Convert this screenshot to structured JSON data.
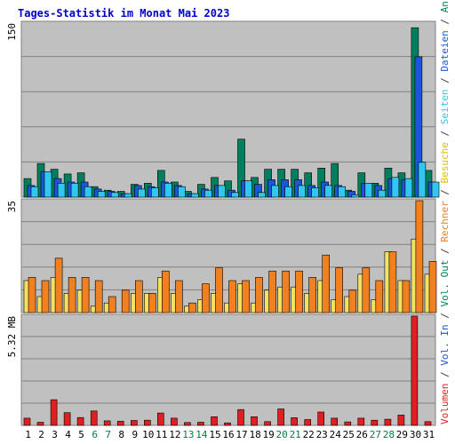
{
  "chart_data": {
    "type": "bar",
    "title": "Tages-Statistik im Monat Mai 2023",
    "categories": [
      "1",
      "2",
      "3",
      "4",
      "5",
      "6",
      "7",
      "8",
      "9",
      "10",
      "11",
      "12",
      "13",
      "14",
      "15",
      "16",
      "17",
      "18",
      "19",
      "20",
      "21",
      "22",
      "23",
      "24",
      "25",
      "26",
      "27",
      "28",
      "29",
      "30",
      "31"
    ],
    "weekend_days": [
      "6",
      "7",
      "13",
      "14",
      "20",
      "21",
      "27",
      "28"
    ],
    "panels": [
      {
        "id": "top",
        "scale_label": "150",
        "ylim": [
          0,
          150
        ],
        "series": [
          {
            "name": "Anfragen",
            "color": "#007f5f",
            "values": [
              16,
              29,
              24,
              20,
              21,
              9,
              6,
              5,
              11,
              12,
              23,
              13,
              5,
              11,
              17,
              14,
              50,
              17,
              24,
              24,
              24,
              21,
              25,
              29,
              6,
              21,
              12,
              25,
              21,
              146,
              23
            ]
          },
          {
            "name": "Dateien",
            "color": "#1a57d8",
            "values": [
              10,
              22,
              16,
              13,
              13,
              7,
              5,
              3,
              10,
              9,
              13,
              10,
              3,
              7,
              10,
              6,
              14,
              11,
              15,
              15,
              15,
              10,
              13,
              10,
              5,
              12,
              10,
              16,
              15,
              121,
              13
            ]
          },
          {
            "name": "Seiten",
            "color": "#30c8f0",
            "values": [
              9,
              22,
              12,
              12,
              9,
              5,
              4,
              3,
              7,
              8,
              12,
              9,
              3,
              6,
              10,
              4,
              14,
              4,
              10,
              9,
              10,
              8,
              10,
              9,
              2,
              12,
              6,
              17,
              16,
              30,
              13
            ]
          }
        ]
      },
      {
        "id": "middle",
        "scale_label": "35",
        "ylim": [
          0,
          35
        ],
        "series": [
          {
            "name": "Besuche",
            "color": "#f5e060",
            "values": [
              10,
              5,
              11,
              6,
              7,
              2,
              3,
              0,
              6,
              6,
              11,
              6,
              2,
              4,
              6,
              3,
              9,
              3,
              7,
              8,
              8,
              6,
              10,
              4,
              5,
              12,
              4,
              19,
              10,
              23,
              12
            ]
          },
          {
            "name": "Rechner",
            "color": "#f08020",
            "values": [
              11,
              10,
              17,
              11,
              11,
              10,
              5,
              7,
              10,
              6,
              13,
              10,
              3,
              9,
              14,
              10,
              10,
              11,
              13,
              13,
              13,
              11,
              18,
              14,
              7,
              14,
              10,
              19,
              10,
              35,
              16
            ]
          }
        ]
      },
      {
        "id": "bottom",
        "scale_label": "5.32 MB",
        "ylim": [
          0,
          5.32
        ],
        "series": [
          {
            "name": "Volumen",
            "color": "#e02020",
            "values": [
              0.35,
              0.15,
              1.25,
              0.62,
              0.38,
              0.7,
              0.22,
              0.2,
              0.24,
              0.25,
              0.6,
              0.35,
              0.14,
              0.15,
              0.42,
              0.12,
              0.77,
              0.42,
              0.18,
              0.8,
              0.37,
              0.28,
              0.65,
              0.35,
              0.17,
              0.35,
              0.25,
              0.3,
              0.5,
              5.32,
              0.18
            ]
          }
        ]
      }
    ],
    "right_labels": [
      {
        "text": "Anfragen",
        "color": "#007f5f"
      },
      {
        "text": " / ",
        "color": "#404040"
      },
      {
        "text": "Dateien",
        "color": "#1a57d8"
      },
      {
        "text": " / ",
        "color": "#404040"
      },
      {
        "text": "Seiten",
        "color": "#30c8f0"
      },
      {
        "text": " / ",
        "color": "#404040"
      },
      {
        "text": "Besuche",
        "color": "#e0c000"
      },
      {
        "text": " / ",
        "color": "#404040"
      },
      {
        "text": "Rechner",
        "color": "#f08020"
      },
      {
        "text": " / ",
        "color": "#404040"
      },
      {
        "text": "Vol. Out",
        "color": "#007f5f"
      },
      {
        "text": " / ",
        "color": "#404040"
      },
      {
        "text": "Vol. In",
        "color": "#1a57d8"
      },
      {
        "text": " / ",
        "color": "#404040"
      },
      {
        "text": "Volumen",
        "color": "#e02020"
      }
    ],
    "colors": {
      "title": "#0000cc",
      "panel_bg": "#c0c0c0",
      "weekday_label": "#000000",
      "weekend_label": "#008040"
    }
  }
}
